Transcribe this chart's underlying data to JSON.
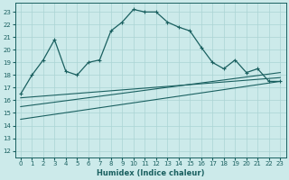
{
  "xlabel": "Humidex (Indice chaleur)",
  "xlim": [
    -0.5,
    23.5
  ],
  "ylim": [
    11.5,
    23.7
  ],
  "yticks": [
    12,
    13,
    14,
    15,
    16,
    17,
    18,
    19,
    20,
    21,
    22,
    23
  ],
  "xticks": [
    0,
    1,
    2,
    3,
    4,
    5,
    6,
    7,
    8,
    9,
    10,
    11,
    12,
    13,
    14,
    15,
    16,
    17,
    18,
    19,
    20,
    21,
    22,
    23
  ],
  "bg_color": "#cceaea",
  "grid_color": "#aad4d4",
  "line_color": "#1a6060",
  "curve_x": [
    0,
    1,
    2,
    3,
    4,
    5,
    6,
    7,
    8,
    9,
    10,
    11,
    12,
    13,
    14,
    15,
    16,
    17,
    18,
    19,
    20,
    21,
    22,
    23
  ],
  "curve_y": [
    16.5,
    18.0,
    19.2,
    20.8,
    18.3,
    18.0,
    19.0,
    19.2,
    21.5,
    22.2,
    23.2,
    23.0,
    23.0,
    22.2,
    21.8,
    21.5,
    20.2,
    19.0,
    18.5,
    19.2,
    18.2,
    18.5,
    17.5,
    17.5
  ],
  "line1_x": [
    0,
    23
  ],
  "line1_y": [
    15.5,
    18.2
  ],
  "line2_x": [
    0,
    23
  ],
  "line2_y": [
    16.2,
    17.8
  ],
  "line3_x": [
    0,
    23
  ],
  "line3_y": [
    14.5,
    17.5
  ]
}
